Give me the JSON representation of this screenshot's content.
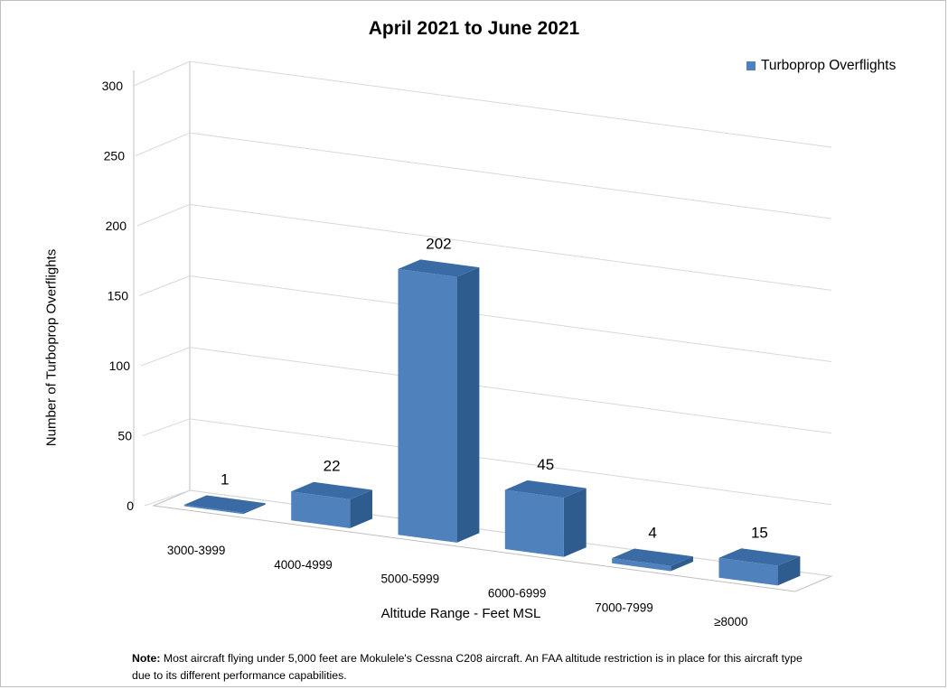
{
  "chart_data": {
    "type": "bar",
    "title": "April 2021 to June 2021",
    "xlabel": "Altitude Range - Feet MSL",
    "ylabel": "Number of Turboprop Overflights",
    "categories": [
      "3000-3999",
      "4000-4999",
      "5000-5999",
      "6000-6999",
      "7000-7999",
      "≥8000"
    ],
    "series": [
      {
        "name": "Turboprop Overflights",
        "values": [
          1,
          22,
          202,
          45,
          4,
          15
        ]
      }
    ],
    "ylim": [
      0,
      300
    ],
    "yticks": [
      "0",
      "50",
      "100",
      "150",
      "200",
      "250",
      "300"
    ],
    "grid": true,
    "legend_position": "top-right",
    "style": "3d-column",
    "colors": {
      "bar_front": "#4f81bd",
      "bar_side": "#2f5c8f",
      "bar_top": "#3a6ba5",
      "grid": "#d9d9d9"
    }
  },
  "note": {
    "label": "Note:",
    "text": " Most aircraft flying under 5,000 feet are Mokulele's Cessna C208 aircraft. An FAA altitude restriction is in place for this aircraft type due to its different performance capabilities."
  }
}
